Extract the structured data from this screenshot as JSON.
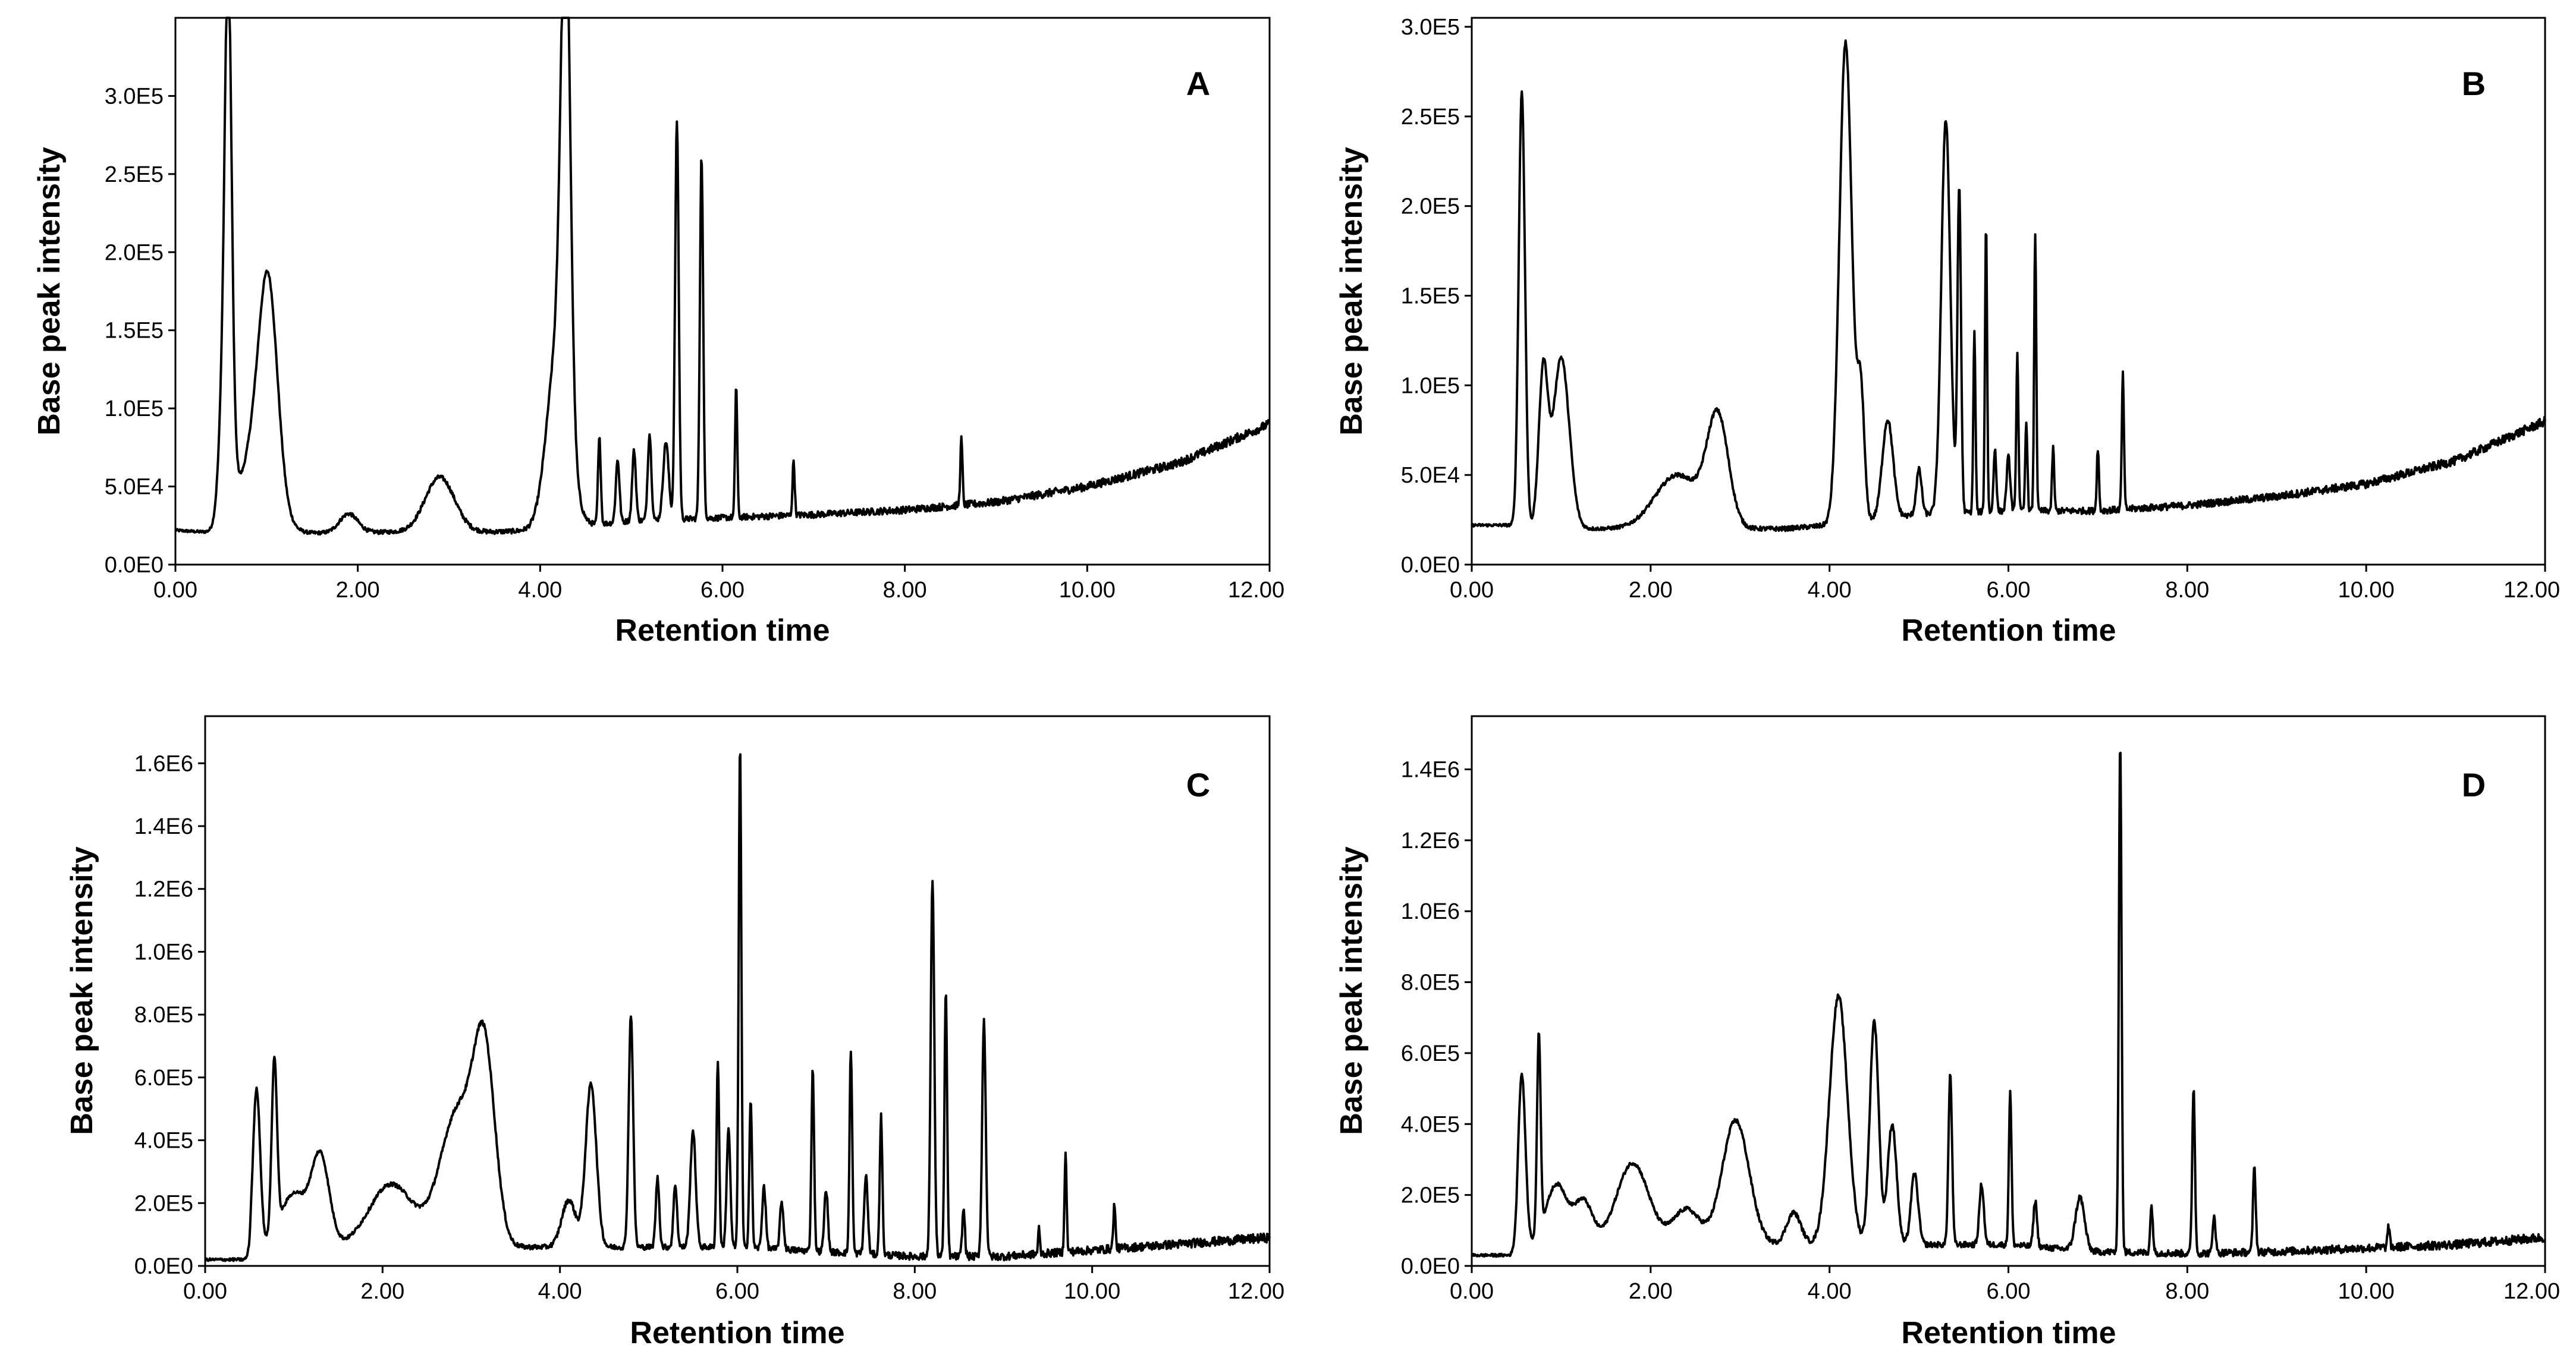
{
  "figure": {
    "x_label": "Retention time",
    "y_label": "Base peak intensity"
  },
  "chart_data": [
    {
      "type": "line",
      "panel": "A",
      "xlabel": "Retention time",
      "ylabel": "Base peak intensity",
      "xlim": [
        0,
        12
      ],
      "ylim": [
        0,
        350000
      ],
      "x_ticks": [
        0,
        2,
        4,
        6,
        8,
        10,
        12
      ],
      "x_tick_labels": [
        "0.00",
        "2.00",
        "4.00",
        "6.00",
        "8.00",
        "10.00",
        "12.00"
      ],
      "y_ticks": [
        0,
        50000,
        100000,
        150000,
        200000,
        250000,
        300000
      ],
      "y_tick_labels": [
        "0.0E0",
        "5.0E4",
        "1.0E5",
        "1.5E5",
        "2.0E5",
        "2.5E5",
        "3.0E5"
      ],
      "baseline": [
        [
          0,
          22000
        ],
        [
          0.5,
          20000
        ],
        [
          0.52,
          16000
        ],
        [
          1.3,
          20000
        ],
        [
          2.5,
          21000
        ],
        [
          3.5,
          21000
        ],
        [
          4.0,
          22000
        ],
        [
          5.0,
          28000
        ],
        [
          6.0,
          30000
        ],
        [
          7.0,
          32000
        ],
        [
          8.0,
          35000
        ],
        [
          9.0,
          40000
        ],
        [
          10.0,
          50000
        ],
        [
          11.0,
          65000
        ],
        [
          12.0,
          90000
        ]
      ],
      "peaks": [
        {
          "x": 0.58,
          "y": 228000,
          "w": 0.035
        },
        {
          "x": 0.56,
          "y": 140000,
          "w": 0.06
        },
        {
          "x": 0.9,
          "y": 60000,
          "w": 0.18
        },
        {
          "x": 1.02,
          "y": 120000,
          "w": 0.1
        },
        {
          "x": 1.9,
          "y": 12000,
          "w": 0.1
        },
        {
          "x": 2.9,
          "y": 35000,
          "w": 0.16
        },
        {
          "x": 4.28,
          "y": 312000,
          "w": 0.05
        },
        {
          "x": 4.2,
          "y": 120000,
          "w": 0.12
        },
        {
          "x": 4.65,
          "y": 55000,
          "w": 0.015
        },
        {
          "x": 4.85,
          "y": 40000,
          "w": 0.02
        },
        {
          "x": 5.03,
          "y": 45000,
          "w": 0.02
        },
        {
          "x": 5.2,
          "y": 55000,
          "w": 0.02
        },
        {
          "x": 5.38,
          "y": 50000,
          "w": 0.03
        },
        {
          "x": 5.5,
          "y": 255000,
          "w": 0.02
        },
        {
          "x": 5.77,
          "y": 232000,
          "w": 0.018
        },
        {
          "x": 6.15,
          "y": 85000,
          "w": 0.012
        },
        {
          "x": 6.78,
          "y": 35000,
          "w": 0.012
        },
        {
          "x": 8.62,
          "y": 42000,
          "w": 0.012
        }
      ]
    },
    {
      "type": "line",
      "panel": "B",
      "xlabel": "Retention time",
      "ylabel": "Base peak intensity",
      "xlim": [
        0,
        12
      ],
      "ylim": [
        0,
        305000
      ],
      "x_ticks": [
        0,
        2,
        4,
        6,
        8,
        10,
        12
      ],
      "x_tick_labels": [
        "0.00",
        "2.00",
        "4.00",
        "6.00",
        "8.00",
        "10.00",
        "12.00"
      ],
      "y_ticks": [
        0,
        50000,
        100000,
        150000,
        200000,
        250000,
        300000
      ],
      "y_tick_labels": [
        "0.0E0",
        "5.0E4",
        "1.0E5",
        "1.5E5",
        "2.0E5",
        "2.5E5",
        "3.0E5"
      ],
      "baseline": [
        [
          0,
          22000
        ],
        [
          0.5,
          22000
        ],
        [
          1.3,
          20000
        ],
        [
          3.5,
          20000
        ],
        [
          4.0,
          22000
        ],
        [
          5.0,
          28000
        ],
        [
          6.0,
          30000
        ],
        [
          7.0,
          30000
        ],
        [
          8.0,
          33000
        ],
        [
          9.0,
          38000
        ],
        [
          10.0,
          45000
        ],
        [
          11.0,
          58000
        ],
        [
          12.0,
          80000
        ]
      ],
      "peaks": [
        {
          "x": 0.56,
          "y": 242000,
          "w": 0.035
        },
        {
          "x": 0.8,
          "y": 85000,
          "w": 0.05
        },
        {
          "x": 1.0,
          "y": 95000,
          "w": 0.09
        },
        {
          "x": 2.3,
          "y": 30000,
          "w": 0.25
        },
        {
          "x": 2.75,
          "y": 60000,
          "w": 0.12
        },
        {
          "x": 4.18,
          "y": 268000,
          "w": 0.07
        },
        {
          "x": 4.35,
          "y": 70000,
          "w": 0.04
        },
        {
          "x": 4.65,
          "y": 55000,
          "w": 0.06
        },
        {
          "x": 5.0,
          "y": 25000,
          "w": 0.03
        },
        {
          "x": 5.3,
          "y": 220000,
          "w": 0.05
        },
        {
          "x": 5.45,
          "y": 180000,
          "w": 0.02
        },
        {
          "x": 5.62,
          "y": 100000,
          "w": 0.012
        },
        {
          "x": 5.75,
          "y": 160000,
          "w": 0.012
        },
        {
          "x": 5.85,
          "y": 35000,
          "w": 0.015
        },
        {
          "x": 6.0,
          "y": 30000,
          "w": 0.02
        },
        {
          "x": 6.1,
          "y": 88000,
          "w": 0.012
        },
        {
          "x": 6.2,
          "y": 50000,
          "w": 0.012
        },
        {
          "x": 6.3,
          "y": 155000,
          "w": 0.012
        },
        {
          "x": 6.5,
          "y": 35000,
          "w": 0.012
        },
        {
          "x": 7.0,
          "y": 35000,
          "w": 0.012
        },
        {
          "x": 7.28,
          "y": 75000,
          "w": 0.012
        }
      ]
    },
    {
      "type": "line",
      "panel": "C",
      "xlabel": "Retention time",
      "ylabel": "Base peak intensity",
      "xlim": [
        0,
        12
      ],
      "ylim": [
        0,
        1750000
      ],
      "x_ticks": [
        0,
        2,
        4,
        6,
        8,
        10,
        12
      ],
      "x_tick_labels": [
        "0.00",
        "2.00",
        "4.00",
        "6.00",
        "8.00",
        "10.00",
        "12.00"
      ],
      "y_ticks": [
        0,
        200000,
        400000,
        600000,
        800000,
        1000000,
        1200000,
        1400000,
        1600000
      ],
      "y_tick_labels": [
        "0.0E0",
        "2.0E5",
        "4.0E5",
        "6.0E5",
        "8.0E5",
        "1.0E6",
        "1.2E6",
        "1.4E6",
        "1.6E6"
      ],
      "baseline": [
        [
          0,
          20000
        ],
        [
          0.5,
          20000
        ],
        [
          0.52,
          60000
        ],
        [
          6.0,
          60000
        ],
        [
          8.0,
          30000
        ],
        [
          9.0,
          30000
        ],
        [
          10.0,
          50000
        ],
        [
          11.0,
          70000
        ],
        [
          12.0,
          90000
        ]
      ],
      "peaks": [
        {
          "x": 0.58,
          "y": 500000,
          "w": 0.04
        },
        {
          "x": 0.78,
          "y": 550000,
          "w": 0.03
        },
        {
          "x": 1.0,
          "y": 170000,
          "w": 0.15
        },
        {
          "x": 1.3,
          "y": 280000,
          "w": 0.1
        },
        {
          "x": 2.1,
          "y": 200000,
          "w": 0.25
        },
        {
          "x": 2.85,
          "y": 430000,
          "w": 0.2
        },
        {
          "x": 3.15,
          "y": 560000,
          "w": 0.12
        },
        {
          "x": 4.1,
          "y": 150000,
          "w": 0.08
        },
        {
          "x": 4.35,
          "y": 520000,
          "w": 0.06
        },
        {
          "x": 4.8,
          "y": 740000,
          "w": 0.025
        },
        {
          "x": 5.1,
          "y": 220000,
          "w": 0.02
        },
        {
          "x": 5.3,
          "y": 200000,
          "w": 0.02
        },
        {
          "x": 5.5,
          "y": 370000,
          "w": 0.03
        },
        {
          "x": 5.78,
          "y": 590000,
          "w": 0.015
        },
        {
          "x": 5.9,
          "y": 380000,
          "w": 0.02
        },
        {
          "x": 6.03,
          "y": 1600000,
          "w": 0.015
        },
        {
          "x": 6.15,
          "y": 470000,
          "w": 0.015
        },
        {
          "x": 6.3,
          "y": 200000,
          "w": 0.02
        },
        {
          "x": 6.5,
          "y": 150000,
          "w": 0.02
        },
        {
          "x": 6.85,
          "y": 580000,
          "w": 0.015
        },
        {
          "x": 7.0,
          "y": 200000,
          "w": 0.02
        },
        {
          "x": 7.28,
          "y": 650000,
          "w": 0.015
        },
        {
          "x": 7.45,
          "y": 250000,
          "w": 0.02
        },
        {
          "x": 7.62,
          "y": 440000,
          "w": 0.015
        },
        {
          "x": 8.2,
          "y": 1200000,
          "w": 0.02
        },
        {
          "x": 8.35,
          "y": 840000,
          "w": 0.015
        },
        {
          "x": 8.55,
          "y": 150000,
          "w": 0.015
        },
        {
          "x": 8.78,
          "y": 750000,
          "w": 0.02
        },
        {
          "x": 9.4,
          "y": 80000,
          "w": 0.01
        },
        {
          "x": 9.7,
          "y": 310000,
          "w": 0.012
        },
        {
          "x": 10.25,
          "y": 140000,
          "w": 0.012
        }
      ]
    },
    {
      "type": "line",
      "panel": "D",
      "xlabel": "Retention time",
      "ylabel": "Base peak intensity",
      "xlim": [
        0,
        12
      ],
      "ylim": [
        0,
        1550000
      ],
      "x_ticks": [
        0,
        2,
        4,
        6,
        8,
        10,
        12
      ],
      "x_tick_labels": [
        "0.00",
        "2.00",
        "4.00",
        "6.00",
        "8.00",
        "10.00",
        "12.00"
      ],
      "y_ticks": [
        0,
        200000,
        400000,
        600000,
        800000,
        1000000,
        1200000,
        1400000
      ],
      "y_tick_labels": [
        "0.0E0",
        "2.0E5",
        "4.0E5",
        "6.0E5",
        "8.0E5",
        "1.0E6",
        "1.2E6",
        "1.4E6"
      ],
      "baseline": [
        [
          0,
          30000
        ],
        [
          0.5,
          30000
        ],
        [
          0.52,
          60000
        ],
        [
          6.0,
          60000
        ],
        [
          7.0,
          40000
        ],
        [
          8.0,
          35000
        ],
        [
          9.0,
          40000
        ],
        [
          10.0,
          50000
        ],
        [
          11.0,
          60000
        ],
        [
          12.0,
          80000
        ]
      ],
      "peaks": [
        {
          "x": 0.56,
          "y": 480000,
          "w": 0.04
        },
        {
          "x": 0.75,
          "y": 560000,
          "w": 0.02
        },
        {
          "x": 0.95,
          "y": 170000,
          "w": 0.12
        },
        {
          "x": 1.25,
          "y": 120000,
          "w": 0.1
        },
        {
          "x": 1.8,
          "y": 230000,
          "w": 0.18
        },
        {
          "x": 2.4,
          "y": 100000,
          "w": 0.15
        },
        {
          "x": 2.95,
          "y": 350000,
          "w": 0.15
        },
        {
          "x": 3.6,
          "y": 90000,
          "w": 0.08
        },
        {
          "x": 4.1,
          "y": 700000,
          "w": 0.1
        },
        {
          "x": 4.5,
          "y": 630000,
          "w": 0.05
        },
        {
          "x": 4.7,
          "y": 340000,
          "w": 0.05
        },
        {
          "x": 4.95,
          "y": 200000,
          "w": 0.04
        },
        {
          "x": 5.35,
          "y": 480000,
          "w": 0.02
        },
        {
          "x": 5.7,
          "y": 170000,
          "w": 0.025
        },
        {
          "x": 6.02,
          "y": 430000,
          "w": 0.015
        },
        {
          "x": 6.3,
          "y": 130000,
          "w": 0.02
        },
        {
          "x": 6.8,
          "y": 150000,
          "w": 0.05
        },
        {
          "x": 7.25,
          "y": 1450000,
          "w": 0.015
        },
        {
          "x": 7.6,
          "y": 130000,
          "w": 0.015
        },
        {
          "x": 8.07,
          "y": 470000,
          "w": 0.015
        },
        {
          "x": 8.3,
          "y": 110000,
          "w": 0.015
        },
        {
          "x": 8.75,
          "y": 240000,
          "w": 0.015
        },
        {
          "x": 10.25,
          "y": 60000,
          "w": 0.012
        }
      ]
    }
  ]
}
